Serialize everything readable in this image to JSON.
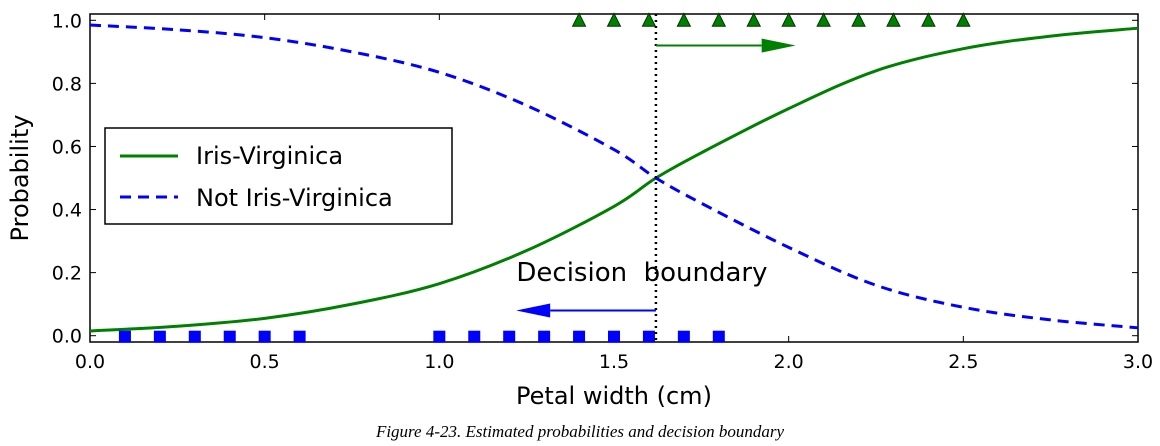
{
  "caption": "Figure 4-23. Estimated probabilities and decision boundary",
  "colors": {
    "virginica": "#008000",
    "not_virginica": "#0000ff",
    "boundary": "#000000"
  },
  "chart_data": {
    "type": "line",
    "xlabel": "Petal width (cm)",
    "ylabel": "Probability",
    "xlim": [
      0.0,
      3.0
    ],
    "ylim": [
      -0.02,
      1.02
    ],
    "xticks": [
      "0.0",
      "0.5",
      "1.0",
      "1.5",
      "2.0",
      "2.5",
      "3.0"
    ],
    "yticks": [
      "0.0",
      "0.2",
      "0.4",
      "0.6",
      "0.8",
      "1.0"
    ],
    "grid": false,
    "legend_position": "center-left",
    "series": [
      {
        "name": "Iris-Virginica",
        "style": "solid",
        "color": "#008000",
        "x": [
          0.0,
          0.25,
          0.5,
          0.75,
          1.0,
          1.25,
          1.5,
          1.62,
          1.75,
          2.0,
          2.25,
          2.5,
          2.75,
          3.0
        ],
        "y": [
          0.015,
          0.03,
          0.055,
          0.1,
          0.165,
          0.27,
          0.41,
          0.5,
          0.58,
          0.72,
          0.84,
          0.91,
          0.95,
          0.975
        ]
      },
      {
        "name": "Not Iris-Virginica",
        "style": "dashed",
        "color": "#0000ff",
        "x": [
          0.0,
          0.25,
          0.5,
          0.75,
          1.0,
          1.25,
          1.5,
          1.62,
          1.75,
          2.0,
          2.25,
          2.5,
          2.75,
          3.0
        ],
        "y": [
          0.985,
          0.97,
          0.945,
          0.9,
          0.835,
          0.73,
          0.59,
          0.5,
          0.42,
          0.28,
          0.16,
          0.09,
          0.05,
          0.025
        ]
      }
    ],
    "markers": {
      "virginica_triangles": {
        "y": 1.0,
        "x": [
          1.4,
          1.5,
          1.6,
          1.7,
          1.8,
          1.9,
          2.0,
          2.1,
          2.2,
          2.3,
          2.4,
          2.5
        ]
      },
      "not_virginica_squares": {
        "y": 0.0,
        "x": [
          0.1,
          0.2,
          0.3,
          0.4,
          0.5,
          0.6,
          1.0,
          1.1,
          1.2,
          1.3,
          1.4,
          1.5,
          1.6,
          1.7,
          1.8
        ]
      }
    },
    "decision_boundary": {
      "x": 1.62
    },
    "annotations": [
      {
        "text": "Decision  boundary",
        "x": 1.58,
        "y": 0.174
      }
    ],
    "arrows": [
      {
        "color": "#008000",
        "from": [
          1.62,
          0.92
        ],
        "to": [
          2.02,
          0.92
        ]
      },
      {
        "color": "#0000ff",
        "from": [
          1.62,
          0.08
        ],
        "to": [
          1.22,
          0.08
        ]
      }
    ]
  }
}
